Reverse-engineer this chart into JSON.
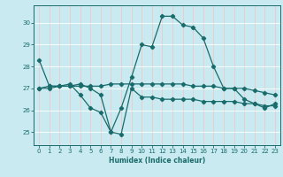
{
  "xlabel": "Humidex (Indice chaleur)",
  "bg_color": "#c8eaf0",
  "grid_color": "#ffffff",
  "grid_pink": "#f0c8c8",
  "line_color": "#1a6b6b",
  "x_ticks": [
    0,
    1,
    2,
    3,
    4,
    5,
    6,
    7,
    8,
    9,
    10,
    11,
    12,
    13,
    14,
    15,
    16,
    17,
    18,
    19,
    20,
    21,
    22,
    23
  ],
  "y_ticks": [
    25,
    26,
    27,
    28,
    29,
    30
  ],
  "ylim": [
    24.4,
    30.8
  ],
  "xlim": [
    -0.5,
    23.5
  ],
  "series1_y": [
    28.3,
    27.1,
    27.1,
    27.2,
    26.7,
    26.1,
    25.9,
    25.0,
    26.1,
    27.5,
    29.0,
    28.9,
    30.3,
    30.3,
    29.9,
    29.8,
    29.3,
    28.0,
    27.0,
    27.0,
    26.5,
    26.3,
    26.1,
    26.3
  ],
  "series2_y": [
    27.0,
    27.0,
    27.1,
    27.1,
    27.1,
    27.1,
    27.1,
    27.2,
    27.2,
    27.2,
    27.2,
    27.2,
    27.2,
    27.2,
    27.2,
    27.1,
    27.1,
    27.1,
    27.0,
    27.0,
    27.0,
    26.9,
    26.8,
    26.7
  ],
  "series3_y": [
    27.0,
    27.1,
    27.1,
    27.1,
    27.2,
    27.0,
    26.7,
    25.0,
    24.9,
    27.0,
    26.6,
    26.6,
    26.5,
    26.5,
    26.5,
    26.5,
    26.4,
    26.4,
    26.4,
    26.4,
    26.3,
    26.3,
    26.2,
    26.2
  ]
}
